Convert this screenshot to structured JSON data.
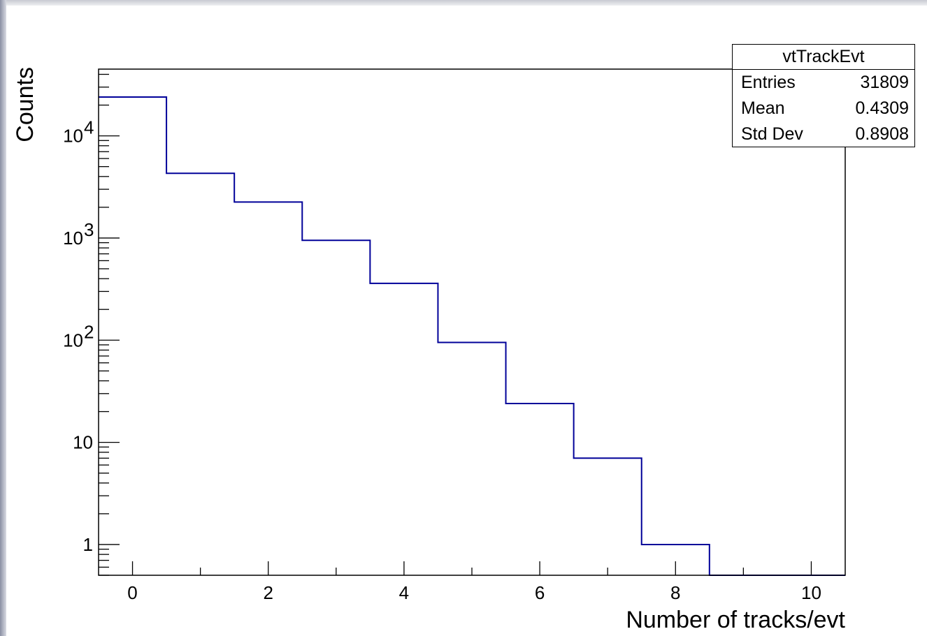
{
  "chart_data": {
    "type": "histogram",
    "title": "",
    "xlabel": "Number of tracks/evt",
    "ylabel": "Counts",
    "xlim": [
      -0.5,
      10.5
    ],
    "ylim": [
      0.5,
      45000
    ],
    "yscale": "log",
    "xticks": [
      "0",
      "2",
      "4",
      "6",
      "8",
      "10"
    ],
    "yticks": [
      {
        "value": 1,
        "base": "1",
        "exp": ""
      },
      {
        "value": 10,
        "base": "10",
        "exp": ""
      },
      {
        "value": 100,
        "base": "10",
        "exp": "2"
      },
      {
        "value": 1000,
        "base": "10",
        "exp": "3"
      },
      {
        "value": 10000,
        "base": "10",
        "exp": "4"
      }
    ],
    "bin_edges": [
      -0.5,
      0.5,
      1.5,
      2.5,
      3.5,
      4.5,
      5.5,
      6.5,
      7.5,
      8.5,
      9.5,
      10.5
    ],
    "counts": [
      24000,
      4300,
      2250,
      950,
      360,
      95,
      24,
      7,
      1,
      0,
      0
    ],
    "line_color": "#000099",
    "grid": false
  },
  "stats": {
    "name": "vtTrackEvt",
    "rows": [
      {
        "label": "Entries",
        "value": "31809"
      },
      {
        "label": "Mean",
        "value": "0.4309"
      },
      {
        "label": "Std Dev",
        "value": "0.8908"
      }
    ]
  }
}
